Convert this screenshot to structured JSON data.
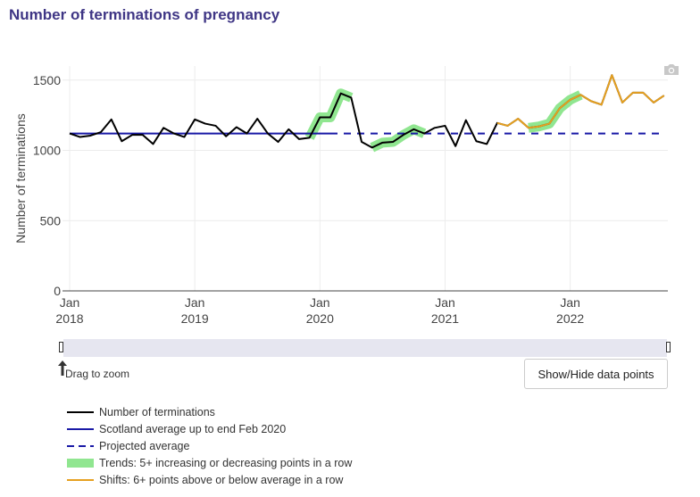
{
  "title": "Number of terminations of pregnancy",
  "controls": {
    "drag_hint": "Drag to zoom",
    "toggle_points_label": "Show/Hide data points"
  },
  "colors": {
    "title": "#3f3685",
    "terminations": "#000000",
    "average": "#1a1aa6",
    "projected": "#1a1aa6",
    "trend": "#90e690",
    "shift": "#e6a020"
  },
  "chart_data": {
    "type": "line",
    "ylabel": "Number of terminations",
    "xlabel": "",
    "ylim": [
      0,
      1600
    ],
    "yticks": [
      0,
      500,
      1000,
      1500
    ],
    "grid": true,
    "legend_position": "bottom",
    "x_tick_labels": [
      {
        "month": "Jan",
        "year": "2018"
      },
      {
        "month": "Jan",
        "year": "2019"
      },
      {
        "month": "Jan",
        "year": "2020"
      },
      {
        "month": "Jan",
        "year": "2021"
      },
      {
        "month": "Jan",
        "year": "2022"
      }
    ],
    "x_start": "2018-01",
    "series": [
      {
        "name": "Number of terminations",
        "values": [
          1120,
          1095,
          1105,
          1130,
          1220,
          1065,
          1110,
          1110,
          1045,
          1160,
          1120,
          1095,
          1220,
          1190,
          1175,
          1100,
          1165,
          1120,
          1225,
          1120,
          1060,
          1150,
          1080,
          1090,
          1235,
          1235,
          1405,
          1375,
          1060,
          1020,
          1055,
          1060,
          1110,
          1150,
          1120,
          1160,
          1175,
          1030,
          1215,
          1065,
          1045,
          1195,
          1175,
          1225,
          1160,
          1170,
          1190,
          1300,
          1360,
          1395,
          1350,
          1325,
          1535,
          1340,
          1410,
          1410,
          1340,
          1390
        ]
      },
      {
        "name": "Scotland average up to end Feb 2020",
        "start_index": 0,
        "end_index": 25,
        "value": 1120
      },
      {
        "name": "Projected average",
        "start_index": 25,
        "end_index": 57,
        "value": 1120
      },
      {
        "name": "Trends: 5+ increasing or decreasing points in a row",
        "segments": [
          [
            23,
            27
          ],
          [
            29,
            34
          ],
          [
            44,
            49
          ]
        ]
      },
      {
        "name": "Shifts: 6+ points above or below average in a row",
        "segments": [
          [
            41,
            57
          ]
        ]
      }
    ]
  }
}
